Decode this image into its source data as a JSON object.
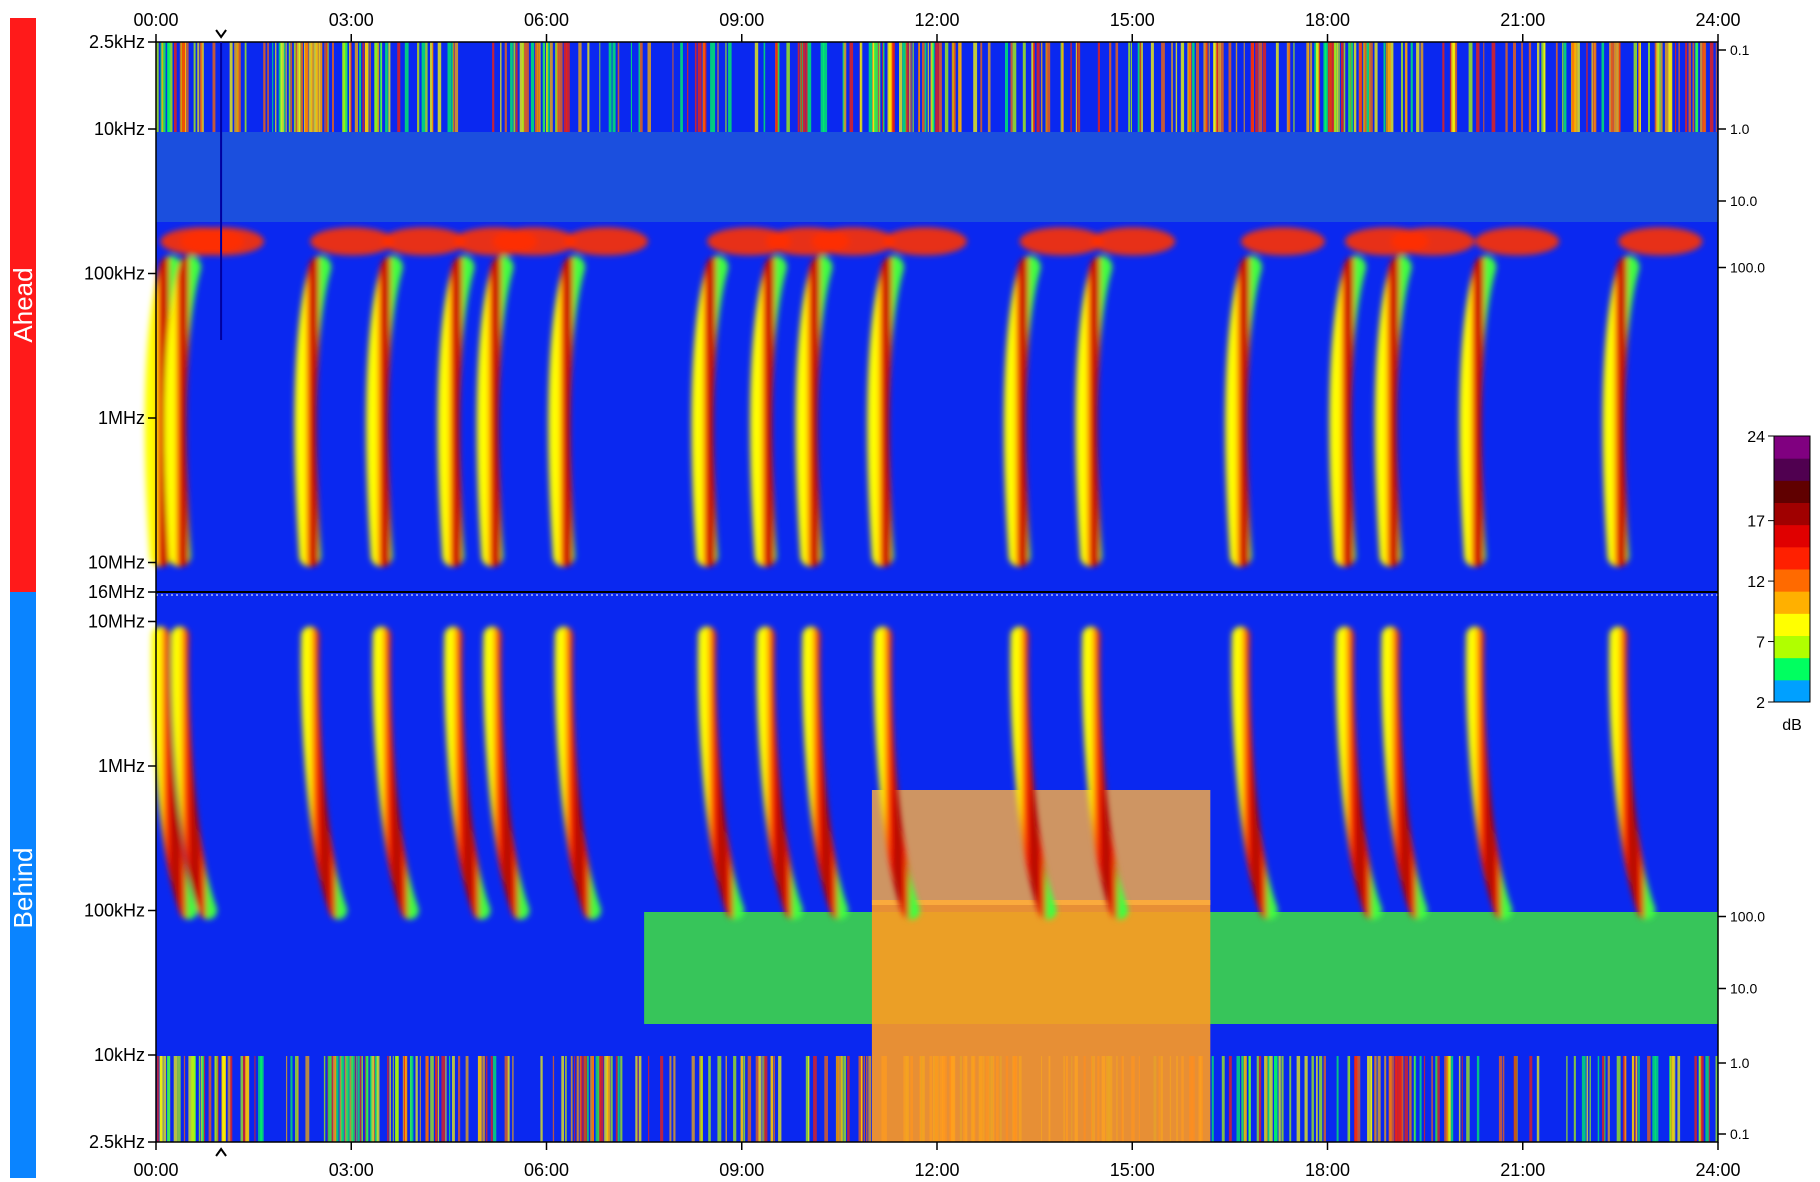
{
  "chart_data": {
    "type": "heatmap",
    "title": "",
    "time_axis": {
      "ticks": [
        "00:00",
        "03:00",
        "06:00",
        "09:00",
        "12:00",
        "15:00",
        "18:00",
        "21:00",
        "24:00"
      ],
      "range_hours": [
        0,
        24
      ],
      "marker_hours": 1.0
    },
    "panels": [
      {
        "name": "Ahead",
        "color": "#ff1a1a",
        "frequency_ticks": [
          "2.5kHz",
          "10kHz",
          "100kHz",
          "1MHz",
          "10MHz",
          "16MHz"
        ],
        "right_ticks": [
          "0.1",
          "1.0",
          "10.0",
          "100.0"
        ],
        "log_frequency_range_hz": [
          2500,
          16000000
        ]
      },
      {
        "name": "Behind",
        "color": "#0a84ff",
        "frequency_ticks": [
          "10MHz",
          "1MHz",
          "100kHz",
          "10kHz",
          "2.5kHz"
        ],
        "right_ticks": [
          "100.0",
          "10.0",
          "1.0",
          "0.1"
        ],
        "log_frequency_range_hz": [
          2500,
          16000000
        ]
      }
    ],
    "colorbar": {
      "unit": "dB",
      "ticks": [
        "24",
        "17",
        "12",
        "7",
        "2"
      ],
      "range": [
        2,
        24
      ],
      "colors": [
        "#00a0ff",
        "#00ff60",
        "#b0ff00",
        "#ffff00",
        "#ffb000",
        "#ff6a00",
        "#ff2000",
        "#e00000",
        "#a00000",
        "#600000",
        "#500050",
        "#800080"
      ]
    },
    "radio_bursts": [
      {
        "start_hours": 0.1
      },
      {
        "start_hours": 0.4
      },
      {
        "start_hours": 2.4
      },
      {
        "start_hours": 3.5
      },
      {
        "start_hours": 4.6
      },
      {
        "start_hours": 5.2
      },
      {
        "start_hours": 6.3
      },
      {
        "start_hours": 8.5
      },
      {
        "start_hours": 9.4
      },
      {
        "start_hours": 10.1
      },
      {
        "start_hours": 11.2
      },
      {
        "start_hours": 13.3
      },
      {
        "start_hours": 14.4
      },
      {
        "start_hours": 16.7
      },
      {
        "start_hours": 18.3
      },
      {
        "start_hours": 19.0
      },
      {
        "start_hours": 20.3
      },
      {
        "start_hours": 22.5
      }
    ],
    "grid": false
  }
}
